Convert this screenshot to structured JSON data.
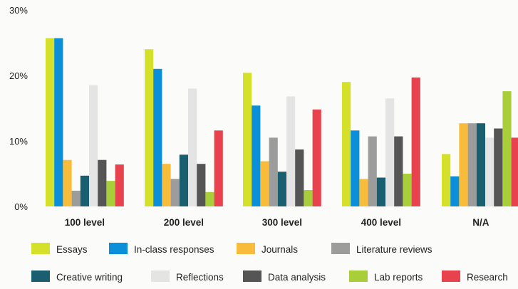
{
  "chart_data": {
    "type": "bar",
    "title": "",
    "xlabel": "",
    "ylabel": "",
    "ylim": [
      0,
      30
    ],
    "yticks": [
      {
        "value": 0,
        "label": "0%"
      },
      {
        "value": 10,
        "label": "10%"
      },
      {
        "value": 20,
        "label": "20%"
      },
      {
        "value": 30,
        "label": "30%"
      }
    ],
    "grid": false,
    "legend_position": "bottom",
    "categories": [
      "100 level",
      "200 level",
      "300 level",
      "400 level",
      "N/A"
    ],
    "series": [
      {
        "name": "Essays",
        "color": "#d4e02a",
        "values": [
          25.7,
          24.0,
          20.4,
          19.0,
          8.0
        ]
      },
      {
        "name": "In-class responses",
        "color": "#0b8fd8",
        "values": [
          25.7,
          21.0,
          15.4,
          11.6,
          4.6
        ]
      },
      {
        "name": "Journals",
        "color": "#f9bc3a",
        "values": [
          7.1,
          6.5,
          6.9,
          4.2,
          12.7
        ]
      },
      {
        "name": "Literature reviews",
        "color": "#9c9c9c",
        "values": [
          2.4,
          4.2,
          10.5,
          10.7,
          12.7
        ]
      },
      {
        "name": "Creative writing",
        "color": "#1a5f70",
        "values": [
          4.7,
          7.9,
          5.3,
          4.4,
          12.7
        ]
      },
      {
        "name": "Reflections",
        "color": "#e4e4e4",
        "values": [
          18.5,
          18.0,
          16.8,
          16.5,
          10.5
        ]
      },
      {
        "name": "Data analysis",
        "color": "#555555",
        "values": [
          7.1,
          6.5,
          8.7,
          10.7,
          11.9
        ]
      },
      {
        "name": "Lab reports",
        "color": "#a8cf3a",
        "values": [
          3.9,
          2.2,
          2.5,
          5.0,
          17.6
        ]
      },
      {
        "name": "Research",
        "color": "#e8424e",
        "values": [
          6.4,
          11.6,
          14.8,
          19.7,
          10.5
        ]
      }
    ]
  }
}
